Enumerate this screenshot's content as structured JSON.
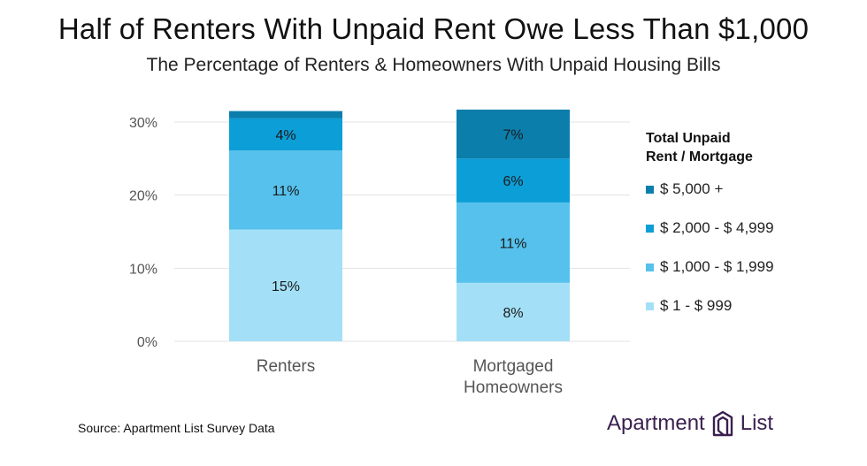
{
  "title": "Half of Renters With Unpaid Rent Owe Less Than $1,000",
  "subtitle": "The Percentage of Renters & Homeowners With Unpaid Housing Bills",
  "legend": {
    "title_line1": "Total Unpaid",
    "title_line2": "Rent / Mortgage"
  },
  "source": "Source: Apartment List Survey Data",
  "logo": {
    "word1": "Apartment",
    "word2": "List",
    "icon": "apartment-list-logo-icon"
  },
  "colors": {
    "s1": "#a3e0f7",
    "s2": "#56c1ec",
    "s3": "#0c9ed7",
    "s4": "#0b7eac",
    "axis_text": "#555555",
    "grid": "#e3e3e3",
    "logo": "#3a1f4f"
  },
  "chart_data": {
    "type": "bar",
    "stacked": true,
    "categories": [
      "Renters",
      "Mortgaged\nHomeowners"
    ],
    "series": [
      {
        "name": "$ 1 - $ 999",
        "values": [
          15.3,
          8
        ],
        "labels": [
          "15%",
          "8%"
        ]
      },
      {
        "name": "$ 1,000 - $ 1,999",
        "values": [
          10.8,
          11
        ],
        "labels": [
          "11%",
          "11%"
        ]
      },
      {
        "name": "$ 2,000 - $ 4,999",
        "values": [
          4.4,
          6
        ],
        "labels": [
          "4%",
          "6%"
        ]
      },
      {
        "name": "$ 5,000 +",
        "values": [
          1.0,
          6.7
        ],
        "labels": [
          "",
          "7%"
        ]
      }
    ],
    "ylim": [
      0,
      30
    ],
    "yticks": [
      0,
      10,
      20,
      30
    ],
    "ytick_labels": [
      "0%",
      "10%",
      "20%",
      "30%"
    ],
    "grid": true,
    "legend_position": "right"
  }
}
